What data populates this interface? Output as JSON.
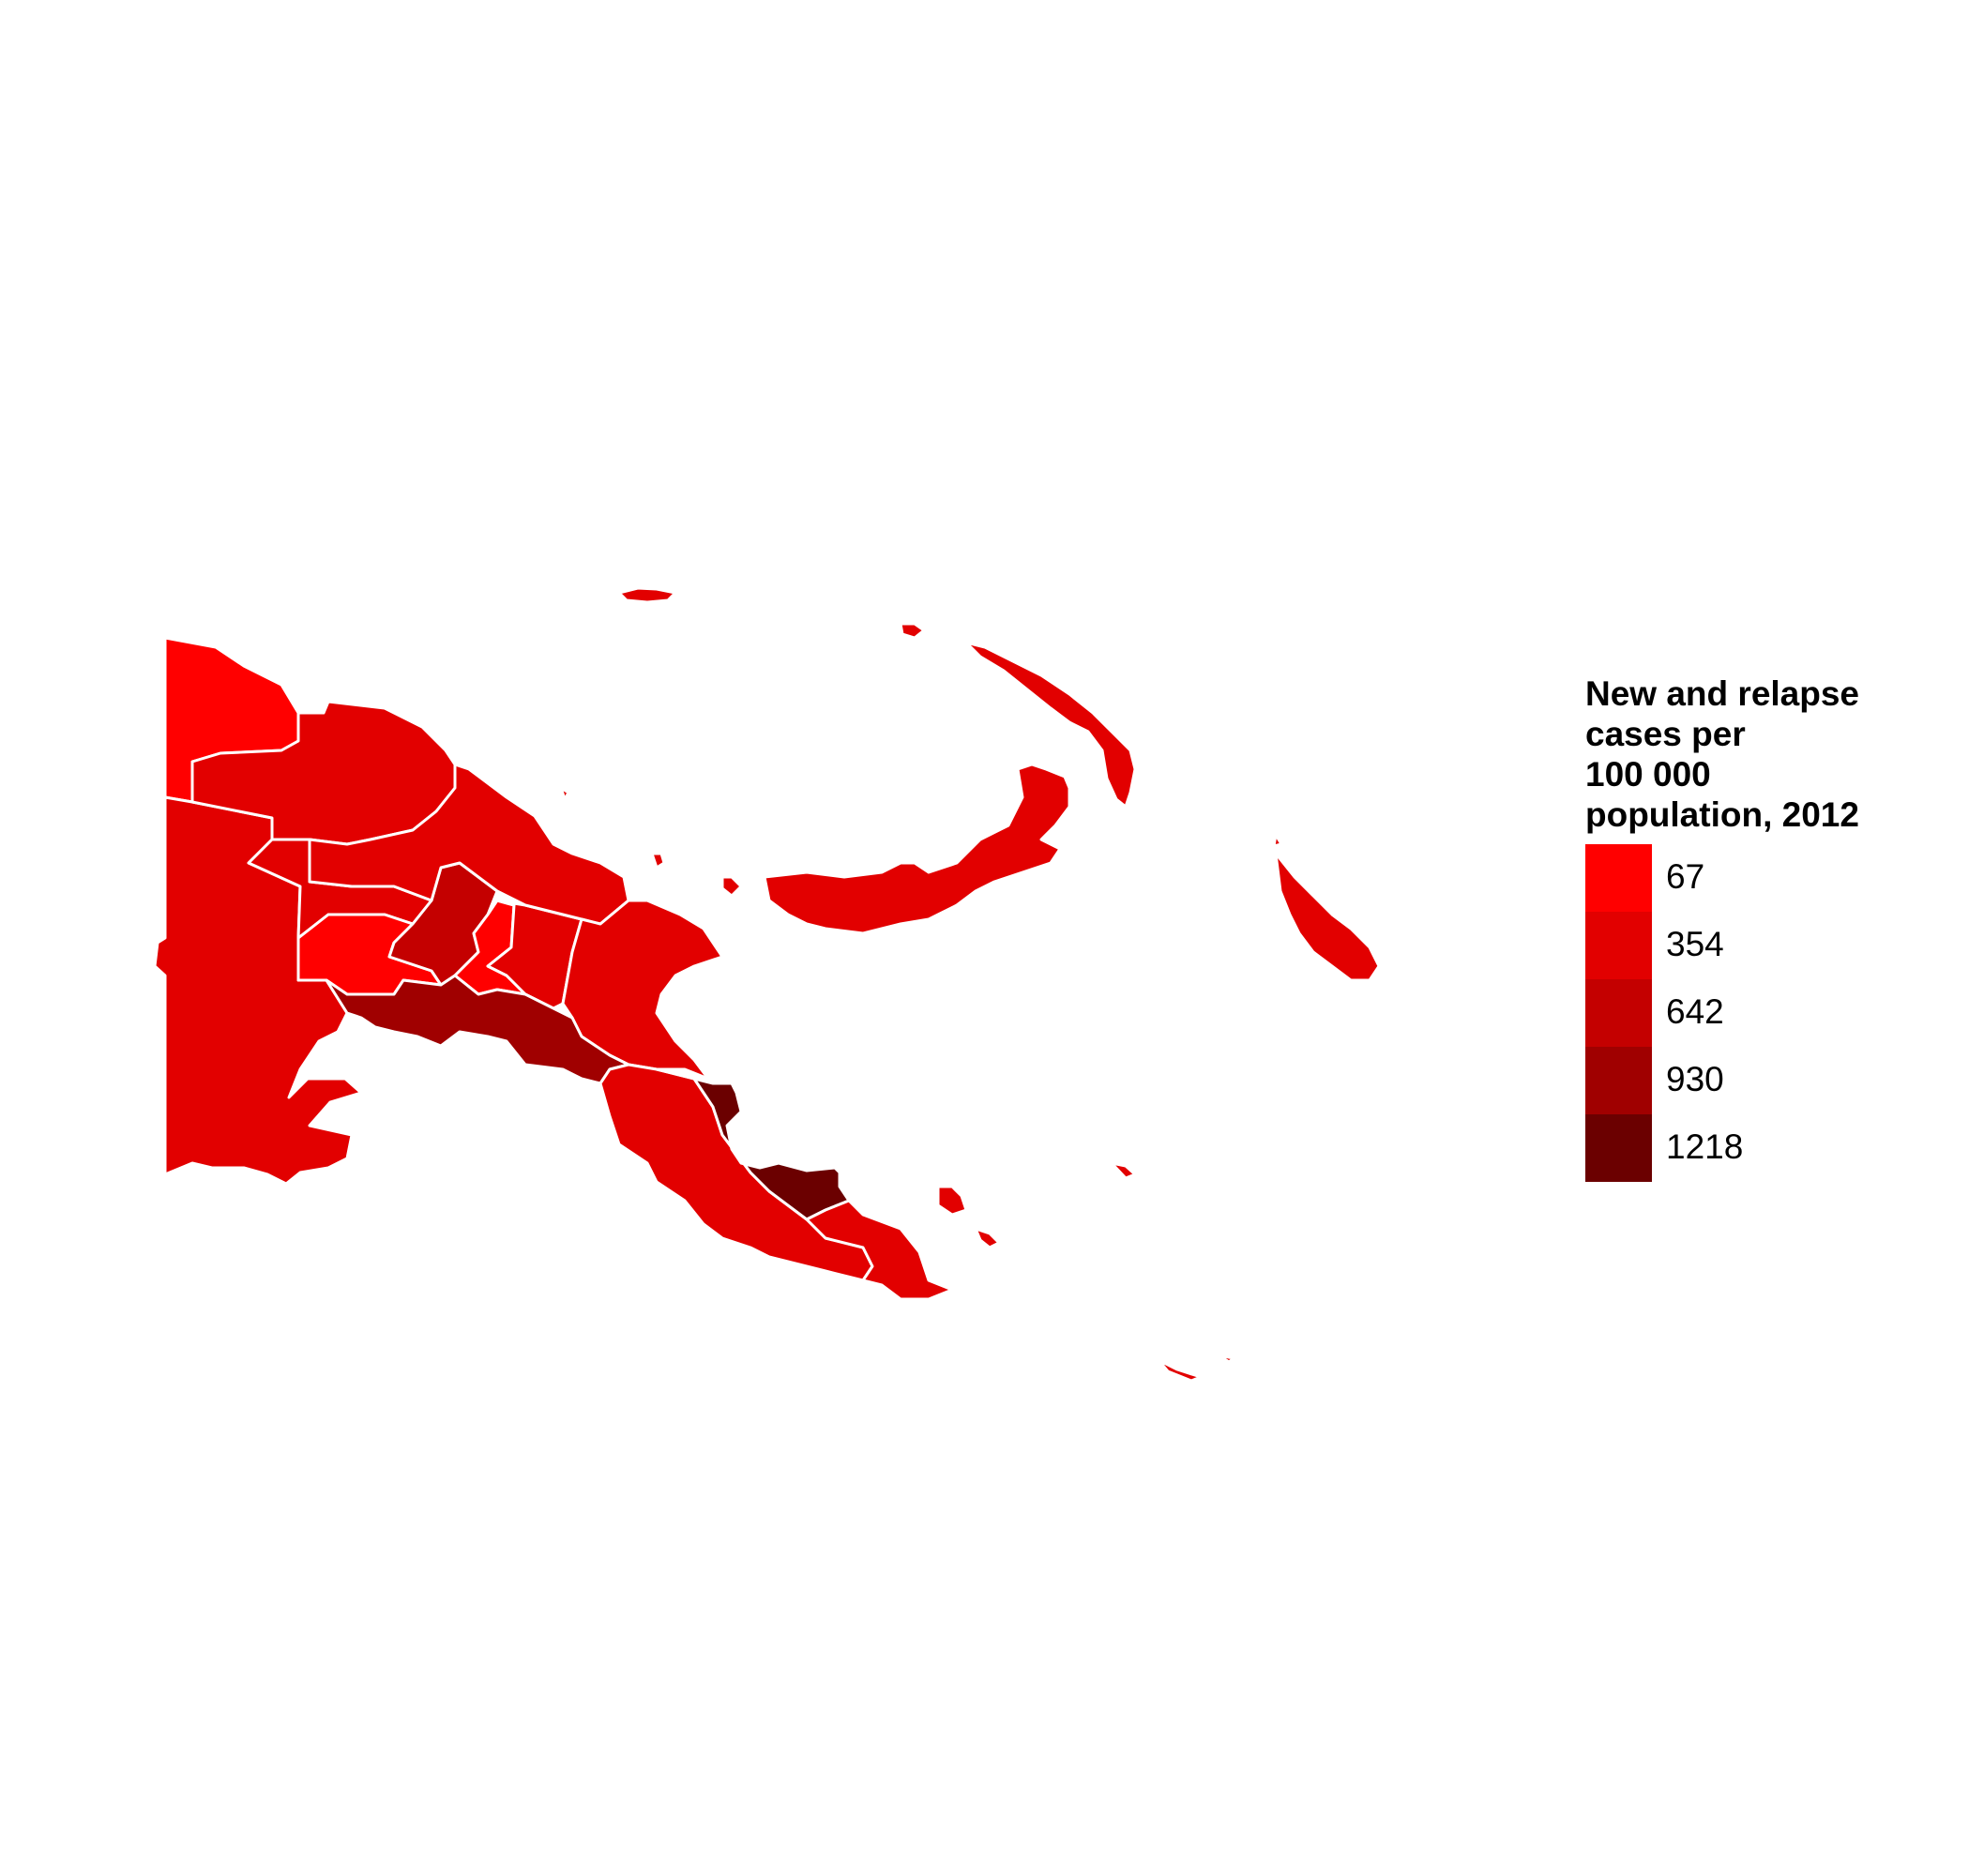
{
  "legend": {
    "title_lines": [
      "New and relapse",
      "cases per",
      "100 000",
      "population, 2012"
    ],
    "bins": [
      {
        "label": "67",
        "color": "#ff0000"
      },
      {
        "label": "354",
        "color": "#e20000"
      },
      {
        "label": "642",
        "color": "#c40000"
      },
      {
        "label": "930",
        "color": "#a00000"
      },
      {
        "label": "1218",
        "color": "#6b0000"
      }
    ]
  },
  "map": {
    "border_color": "#ffffff",
    "regions": [
      {
        "id": "western-northwest",
        "fill_bin": 0
      },
      {
        "id": "western-south",
        "fill_bin": 1
      },
      {
        "id": "east-sepik",
        "fill_bin": 1
      },
      {
        "id": "enga",
        "fill_bin": 1
      },
      {
        "id": "southern-highlands",
        "fill_bin": 0
      },
      {
        "id": "hela",
        "fill_bin": 2
      },
      {
        "id": "simbu",
        "fill_bin": 0
      },
      {
        "id": "eastern-highlands",
        "fill_bin": 1
      },
      {
        "id": "madang",
        "fill_bin": 1
      },
      {
        "id": "morobe",
        "fill_bin": 1
      },
      {
        "id": "gulf",
        "fill_bin": 3
      },
      {
        "id": "central",
        "fill_bin": 1
      },
      {
        "id": "oro",
        "fill_bin": 4
      },
      {
        "id": "milne-bay",
        "fill_bin": 1
      },
      {
        "id": "new-britain",
        "fill_bin": 1
      },
      {
        "id": "new-ireland",
        "fill_bin": 1
      },
      {
        "id": "bougainville",
        "fill_bin": 1
      },
      {
        "id": "manus",
        "fill_bin": 1
      },
      {
        "id": "islands",
        "fill_bin": 1
      }
    ]
  }
}
